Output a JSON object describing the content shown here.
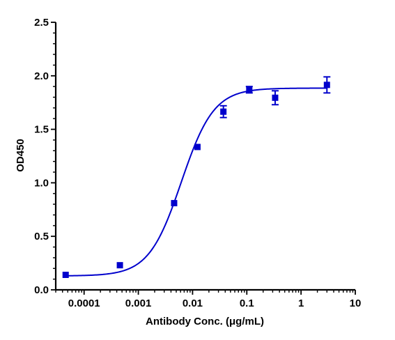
{
  "chart_data": {
    "type": "scatter",
    "title": "",
    "xlabel": "Antibody Conc. (μg/mL)",
    "ylabel": "OD450",
    "xscale": "log",
    "xlim": [
      3e-05,
      10
    ],
    "ylim": [
      0,
      2.5
    ],
    "x_ticks": [
      0.0001,
      0.001,
      0.01,
      0.1,
      1,
      10
    ],
    "x_tick_labels": [
      "0.0001",
      "0.001",
      "0.01",
      "0.1",
      "1",
      "10"
    ],
    "y_ticks": [
      0,
      0.5,
      1.0,
      1.5,
      2.0,
      2.5
    ],
    "y_tick_labels": [
      "0.0",
      "0.5",
      "1.0",
      "1.5",
      "2.0",
      "2.5"
    ],
    "grid": false,
    "legend": "none",
    "color": "#0000CC",
    "series": [
      {
        "x": [
          4.57e-05,
          0.000457,
          0.00457,
          0.0123,
          0.037,
          0.111,
          0.333,
          3.0
        ],
        "y": [
          0.14,
          0.23,
          0.81,
          1.335,
          1.665,
          1.87,
          1.795,
          1.915
        ],
        "error": [
          0.0,
          0.0,
          0.0,
          0.0,
          0.055,
          0.03,
          0.065,
          0.075
        ],
        "fit": {
          "model": "4PL",
          "bottom": 0.13,
          "top": 1.885,
          "ec50": 0.0062,
          "hill": 1.45
        }
      }
    ]
  }
}
